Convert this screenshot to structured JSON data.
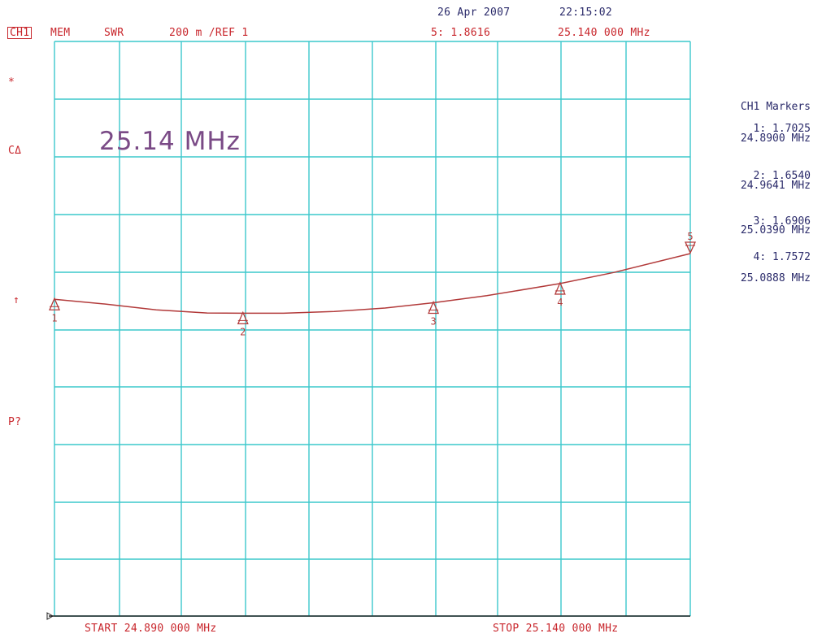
{
  "header": {
    "channel_badge": "CH1",
    "mode": "MEM",
    "format": "SWR",
    "scale": "200 m /REF 1",
    "active_marker": "5: 1.8616",
    "active_marker_freq": "25.140 000 MHz",
    "date": "26 Apr 2007",
    "time": "22:15:02"
  },
  "left_indicators": {
    "star": "*",
    "cal": "CΔ",
    "ref_arrow": "↑",
    "power": "P?"
  },
  "display_freq": "25.14 MHz",
  "footer": {
    "start": "START  24.890 000 MHz",
    "stop": "STOP  25.140 000 MHz"
  },
  "marker_panel": {
    "title": "CH1 Markers",
    "items": [
      {
        "value": "1: 1.7025",
        "freq": "24.8900 MHz"
      },
      {
        "value": "2: 1.6540",
        "freq": "24.9641 MHz"
      },
      {
        "value": "3: 1.6906",
        "freq": "25.0390 MHz"
      },
      {
        "value": "4: 1.7572",
        "freq": "25.0888 MHz"
      }
    ]
  },
  "colors": {
    "grid": "#3cc8cc",
    "trace": "#b23a3a",
    "axis": "#222222"
  },
  "chart_data": {
    "type": "line",
    "title": "",
    "xlabel": "",
    "ylabel": "",
    "x_range_mhz": [
      24.89,
      25.14
    ],
    "y_range": [
      0.6,
      2.6
    ],
    "grid": true,
    "series": [
      {
        "x": [
          24.89,
          24.91,
          24.93,
          24.95,
          24.9641,
          24.98,
          25.0,
          25.02,
          25.039,
          25.06,
          25.0888,
          25.11,
          25.14
        ],
        "y": [
          1.7025,
          1.686,
          1.666,
          1.655,
          1.654,
          1.654,
          1.66,
          1.672,
          1.6906,
          1.715,
          1.7572,
          1.796,
          1.8616
        ]
      }
    ],
    "markers": [
      {
        "id": "1",
        "x": 24.89,
        "y": 1.7025
      },
      {
        "id": "2",
        "x": 24.9641,
        "y": 1.654
      },
      {
        "id": "3",
        "x": 25.039,
        "y": 1.6906
      },
      {
        "id": "4",
        "x": 25.0888,
        "y": 1.7572
      },
      {
        "id": "5",
        "x": 25.14,
        "y": 1.8616
      }
    ]
  }
}
